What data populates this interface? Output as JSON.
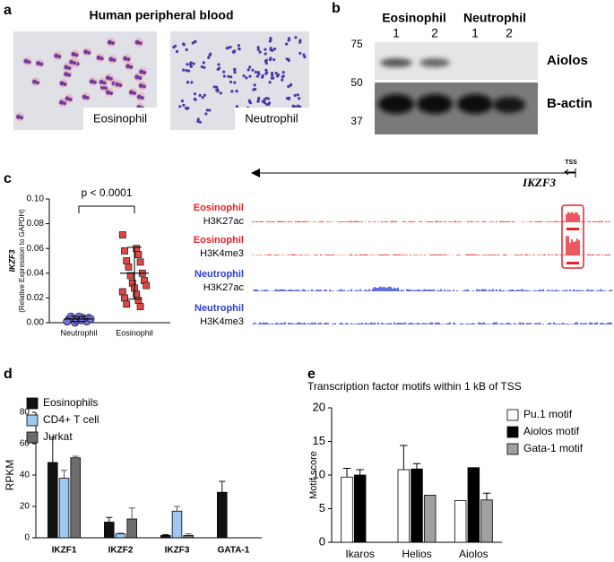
{
  "panel_labels": [
    "a",
    "b",
    "c",
    "d",
    "e"
  ],
  "panel_a": {
    "title": "Human peripheral blood",
    "images": [
      "Eosinophil",
      "Neutrophil"
    ]
  },
  "panel_b": {
    "groups": [
      "Eosinophil",
      "Neutrophil"
    ],
    "lanes": [
      "1",
      "2",
      "1",
      "2"
    ],
    "markers": [
      "75",
      "50",
      "37"
    ],
    "bands": [
      "Aiolos",
      "B-actin"
    ]
  },
  "panel_c_tracks": {
    "gene": "IKZF3",
    "tss": "TSS",
    "tracks": [
      {
        "cell": "Eosinophil",
        "mark": "H3K27ac",
        "color": "#e8202a"
      },
      {
        "cell": "Eosinophil",
        "mark": "H3K4me3",
        "color": "#e8202a"
      },
      {
        "cell": "Neutrophil",
        "mark": "H3K27ac",
        "color": "#2b3fd6"
      },
      {
        "cell": "Neutrophil",
        "mark": "H3K4me3",
        "color": "#2b3fd6"
      }
    ]
  },
  "chart_data": [
    {
      "type": "strip",
      "ylabel": "IKZF3",
      "ylabel_note": "(Relative Expression to GAPDH)",
      "annotation": "p < 0.0001",
      "categories": [
        "Neutrophil",
        "Eosinophil"
      ],
      "series": [
        {
          "color": "#7474e0",
          "marker": "circle",
          "values": [
            0.001,
            0.002,
            0.003,
            0.004,
            0.005,
            0.002,
            0.003,
            0.001,
            0.0,
            0.004,
            0.002,
            0.003,
            0.005,
            0.001,
            0.002
          ],
          "mean": 0.003,
          "sd": 0.002
        },
        {
          "color": "#e04848",
          "marker": "square",
          "values": [
            0.071,
            0.06,
            0.058,
            0.055,
            0.05,
            0.049,
            0.045,
            0.04,
            0.038,
            0.034,
            0.032,
            0.03,
            0.028,
            0.025,
            0.023,
            0.02,
            0.018,
            0.015,
            0.013
          ],
          "mean": 0.04,
          "sd": 0.021
        }
      ],
      "ylim": [
        0,
        0.1
      ],
      "yticks": [
        {
          "value": 0,
          "label": "0.00"
        },
        {
          "value": 0.02,
          "label": "0.02"
        },
        {
          "value": 0.04,
          "label": "0.04"
        },
        {
          "value": 0.06,
          "label": "0.06"
        },
        {
          "value": 0.08,
          "label": "0.08"
        },
        {
          "value": 0.1,
          "label": "0.10"
        }
      ]
    },
    {
      "type": "bar",
      "ylabel": "RPKM",
      "categories": [
        "IKZF1",
        "IKZF2",
        "IKZF3",
        "GATA-1"
      ],
      "series": [
        {
          "name": "Eosinophils",
          "color": "#111111",
          "values": [
            48,
            10,
            1.5,
            29
          ],
          "errors": [
            16,
            3,
            0.5,
            7
          ]
        },
        {
          "name": "CD4+ T cell",
          "color": "#9cc8f2",
          "values": [
            38,
            2.5,
            17,
            0
          ],
          "errors": [
            5,
            0.5,
            3,
            0
          ]
        },
        {
          "name": "Jurkat",
          "color": "#6d6d6d",
          "values": [
            51,
            12,
            1.5,
            0
          ],
          "errors": [
            1,
            7,
            1,
            0
          ]
        }
      ],
      "ylim": [
        0,
        80
      ],
      "yticks": [
        0,
        20,
        40,
        60,
        80
      ]
    },
    {
      "type": "bar",
      "title": "Transcription factor motifs within 1 kB of TSS",
      "ylabel": "Motif score",
      "categories": [
        "Ikaros",
        "Helios",
        "Aiolos"
      ],
      "series": [
        {
          "name": "Pu.1 motif",
          "color": "#ffffff",
          "values": [
            9.7,
            10.8,
            6.2
          ],
          "errors": [
            1.3,
            3.6,
            0
          ]
        },
        {
          "name": "Aiolos motif",
          "color": "#000000",
          "values": [
            10,
            10.9,
            11.1
          ],
          "errors": [
            0.8,
            0.8,
            0
          ]
        },
        {
          "name": "Gata-1 motif",
          "color": "#a0a0a0",
          "values": [
            null,
            7,
            6.3
          ],
          "errors": [
            null,
            0,
            1
          ]
        }
      ],
      "ylim": [
        0,
        20
      ],
      "yticks": [
        0,
        5,
        10,
        15,
        20
      ]
    }
  ]
}
